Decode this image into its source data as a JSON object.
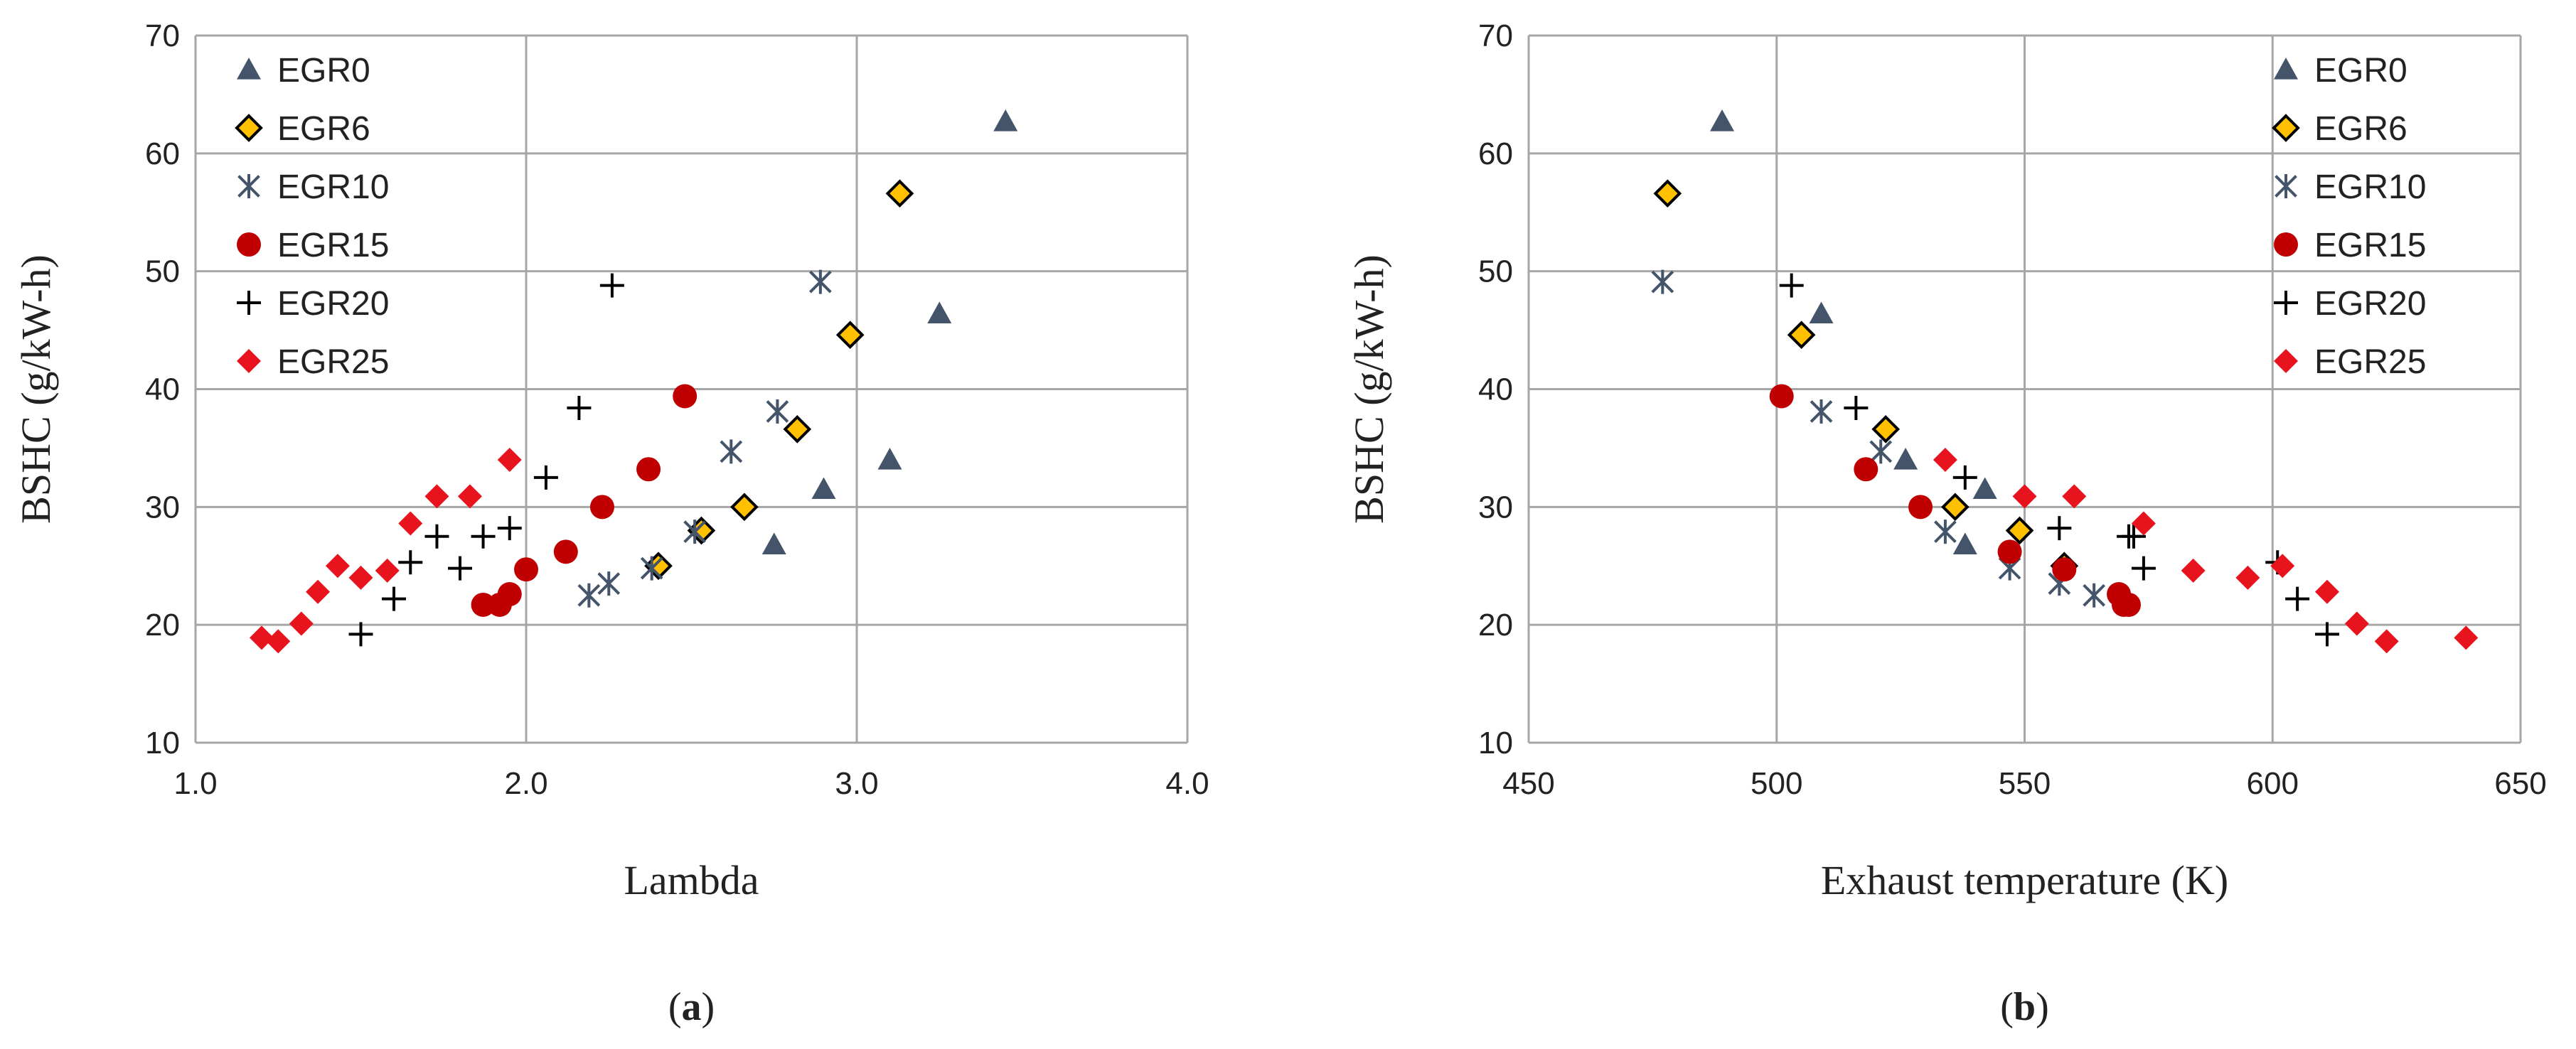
{
  "chart_data": [
    {
      "type": "scatter",
      "panel_label": {
        "open": "(",
        "letter": "a",
        "close": ")"
      },
      "xlabel": "Lambda",
      "ylabel": "BSHC (g/kW-h)",
      "xlim": [
        1.0,
        4.0
      ],
      "ylim": [
        10,
        70
      ],
      "x_ticks": [
        "1.0",
        "2.0",
        "3.0",
        "4.0"
      ],
      "y_ticks": [
        "10",
        "20",
        "30",
        "40",
        "50",
        "60",
        "70"
      ],
      "grid": true,
      "legend_position": "top-left",
      "series": [
        {
          "name": "EGR0",
          "marker": "triangle",
          "color": "#44546a",
          "points": [
            [
              2.75,
              26.8
            ],
            [
              2.9,
              31.5
            ],
            [
              3.1,
              34.0
            ],
            [
              3.25,
              46.4
            ],
            [
              3.45,
              62.7
            ]
          ]
        },
        {
          "name": "EGR6",
          "marker": "diamond",
          "color": "#ffc000",
          "points": [
            [
              2.4,
              25.0
            ],
            [
              2.53,
              28.0
            ],
            [
              2.66,
              30.0
            ],
            [
              2.82,
              36.6
            ],
            [
              2.98,
              44.6
            ],
            [
              3.13,
              56.6
            ]
          ]
        },
        {
          "name": "EGR10",
          "marker": "asterisk",
          "color": "#44546a",
          "points": [
            [
              2.19,
              22.5
            ],
            [
              2.25,
              23.5
            ],
            [
              2.38,
              24.8
            ],
            [
              2.51,
              27.9
            ],
            [
              2.62,
              34.7
            ],
            [
              2.76,
              38.1
            ],
            [
              2.89,
              49.1
            ]
          ]
        },
        {
          "name": "EGR15",
          "marker": "circle",
          "color": "#c00000",
          "points": [
            [
              1.87,
              21.7
            ],
            [
              1.92,
              21.7
            ],
            [
              1.95,
              22.6
            ],
            [
              2.0,
              24.7
            ],
            [
              2.12,
              26.2
            ],
            [
              2.23,
              30.0
            ],
            [
              2.37,
              33.2
            ],
            [
              2.48,
              39.4
            ]
          ]
        },
        {
          "name": "EGR20",
          "marker": "plus",
          "color": "#000000",
          "points": [
            [
              1.5,
              19.2
            ],
            [
              1.6,
              22.2
            ],
            [
              1.65,
              25.3
            ],
            [
              1.73,
              27.5
            ],
            [
              1.8,
              24.8
            ],
            [
              1.87,
              27.5
            ],
            [
              1.95,
              28.2
            ],
            [
              2.06,
              32.5
            ],
            [
              2.16,
              38.4
            ],
            [
              2.26,
              48.8
            ]
          ]
        },
        {
          "name": "EGR25",
          "marker": "diamond",
          "color": "#e8141d",
          "points": [
            [
              1.2,
              18.9
            ],
            [
              1.25,
              18.6
            ],
            [
              1.32,
              20.1
            ],
            [
              1.37,
              22.8
            ],
            [
              1.43,
              25.0
            ],
            [
              1.5,
              24.0
            ],
            [
              1.58,
              24.6
            ],
            [
              1.65,
              28.6
            ],
            [
              1.73,
              30.9
            ],
            [
              1.83,
              30.9
            ],
            [
              1.95,
              34.0
            ]
          ]
        }
      ]
    },
    {
      "type": "scatter",
      "panel_label": {
        "open": "(",
        "letter": "b",
        "close": ")"
      },
      "xlabel": "Exhaust temperature (K)",
      "ylabel": "BSHC (g/kW-h)",
      "xlim": [
        450,
        650
      ],
      "ylim": [
        10,
        70
      ],
      "x_ticks": [
        "450",
        "500",
        "550",
        "600",
        "650"
      ],
      "y_ticks": [
        "10",
        "20",
        "30",
        "40",
        "50",
        "60",
        "70"
      ],
      "grid": true,
      "legend_position": "top-right",
      "series": [
        {
          "name": "EGR0",
          "marker": "triangle",
          "color": "#44546a",
          "points": [
            [
              489,
              62.7
            ],
            [
              509,
              46.4
            ],
            [
              526,
              34.0
            ],
            [
              538,
              26.8
            ],
            [
              542,
              31.5
            ]
          ]
        },
        {
          "name": "EGR6",
          "marker": "diamond",
          "color": "#ffc000",
          "points": [
            [
              478,
              56.6
            ],
            [
              505,
              44.6
            ],
            [
              522,
              36.6
            ],
            [
              536,
              30.0
            ],
            [
              549,
              28.0
            ],
            [
              558,
              25.0
            ]
          ]
        },
        {
          "name": "EGR10",
          "marker": "asterisk",
          "color": "#44546a",
          "points": [
            [
              477,
              49.1
            ],
            [
              509,
              38.1
            ],
            [
              521,
              34.7
            ],
            [
              534,
              27.9
            ],
            [
              547,
              24.8
            ],
            [
              557,
              23.5
            ],
            [
              564,
              22.5
            ]
          ]
        },
        {
          "name": "EGR15",
          "marker": "circle",
          "color": "#c00000",
          "points": [
            [
              501,
              39.4
            ],
            [
              518,
              33.2
            ],
            [
              529,
              30.0
            ],
            [
              547,
              26.2
            ],
            [
              558,
              24.7
            ],
            [
              569,
              22.6
            ],
            [
              570,
              21.7
            ],
            [
              571,
              21.7
            ]
          ]
        },
        {
          "name": "EGR20",
          "marker": "plus",
          "color": "#000000",
          "points": [
            [
              503,
              48.8
            ],
            [
              516,
              38.4
            ],
            [
              538,
              32.5
            ],
            [
              557,
              28.2
            ],
            [
              571,
              27.5
            ],
            [
              574,
              24.8
            ],
            [
              601,
              25.3
            ],
            [
              605,
              22.2
            ],
            [
              611,
              19.2
            ],
            [
              572,
              27.5
            ]
          ]
        },
        {
          "name": "EGR25",
          "marker": "diamond",
          "color": "#e8141d",
          "points": [
            [
              534,
              34.0
            ],
            [
              550,
              30.9
            ],
            [
              560,
              30.9
            ],
            [
              574,
              28.6
            ],
            [
              584,
              24.6
            ],
            [
              595,
              24.0
            ],
            [
              602,
              25.0
            ],
            [
              611,
              22.8
            ],
            [
              617,
              20.1
            ],
            [
              623,
              18.6
            ],
            [
              639,
              18.9
            ]
          ]
        }
      ]
    }
  ]
}
